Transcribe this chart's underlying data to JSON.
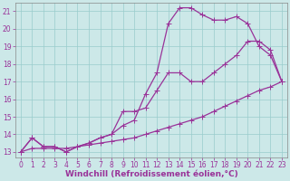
{
  "xlabel": "Windchill (Refroidissement éolien,°C)",
  "bg_color": "#cce8e8",
  "line_color": "#993399",
  "grid_color": "#99cccc",
  "xlim": [
    -0.5,
    23.5
  ],
  "ylim": [
    12.7,
    21.5
  ],
  "xticks": [
    0,
    1,
    2,
    3,
    4,
    5,
    6,
    7,
    8,
    9,
    10,
    11,
    12,
    13,
    14,
    15,
    16,
    17,
    18,
    19,
    20,
    21,
    22,
    23
  ],
  "yticks": [
    13,
    14,
    15,
    16,
    17,
    18,
    19,
    20,
    21
  ],
  "line1_x": [
    0,
    1,
    2,
    3,
    4,
    5,
    6,
    7,
    8,
    9,
    10,
    11,
    12,
    13,
    14,
    15,
    16,
    17,
    18,
    19,
    20,
    21,
    22,
    23
  ],
  "line1_y": [
    13.0,
    13.2,
    13.2,
    13.2,
    13.2,
    13.3,
    13.4,
    13.5,
    13.6,
    13.7,
    13.8,
    14.0,
    14.2,
    14.4,
    14.6,
    14.8,
    15.0,
    15.3,
    15.6,
    15.9,
    16.2,
    16.5,
    16.7,
    17.0
  ],
  "line2_x": [
    0,
    1,
    2,
    3,
    4,
    5,
    6,
    7,
    8,
    9,
    10,
    11,
    12,
    13,
    14,
    15,
    16,
    17,
    18,
    19,
    20,
    21,
    22,
    23
  ],
  "line2_y": [
    13.0,
    13.8,
    13.3,
    13.3,
    13.0,
    13.3,
    13.5,
    13.8,
    14.0,
    15.3,
    15.3,
    15.5,
    16.5,
    17.5,
    17.5,
    17.0,
    17.0,
    17.5,
    18.0,
    18.5,
    19.3,
    19.3,
    18.8,
    17.0
  ],
  "line3_x": [
    0,
    1,
    2,
    3,
    4,
    5,
    6,
    7,
    8,
    9,
    10,
    11,
    12,
    13,
    14,
    15,
    16,
    17,
    18,
    19,
    20,
    21,
    22,
    23
  ],
  "line3_y": [
    13.0,
    13.8,
    13.3,
    13.3,
    13.0,
    13.3,
    13.5,
    13.8,
    14.0,
    14.5,
    14.8,
    16.3,
    17.5,
    20.3,
    21.2,
    21.2,
    20.8,
    20.5,
    20.5,
    20.7,
    20.3,
    19.0,
    18.5,
    17.0
  ],
  "marker": "+",
  "marker_size": 4,
  "linewidth": 0.9,
  "tick_labelsize": 5.5,
  "xlabel_fontsize": 6.5,
  "xlabel_color": "#993399",
  "tick_color": "#993399"
}
